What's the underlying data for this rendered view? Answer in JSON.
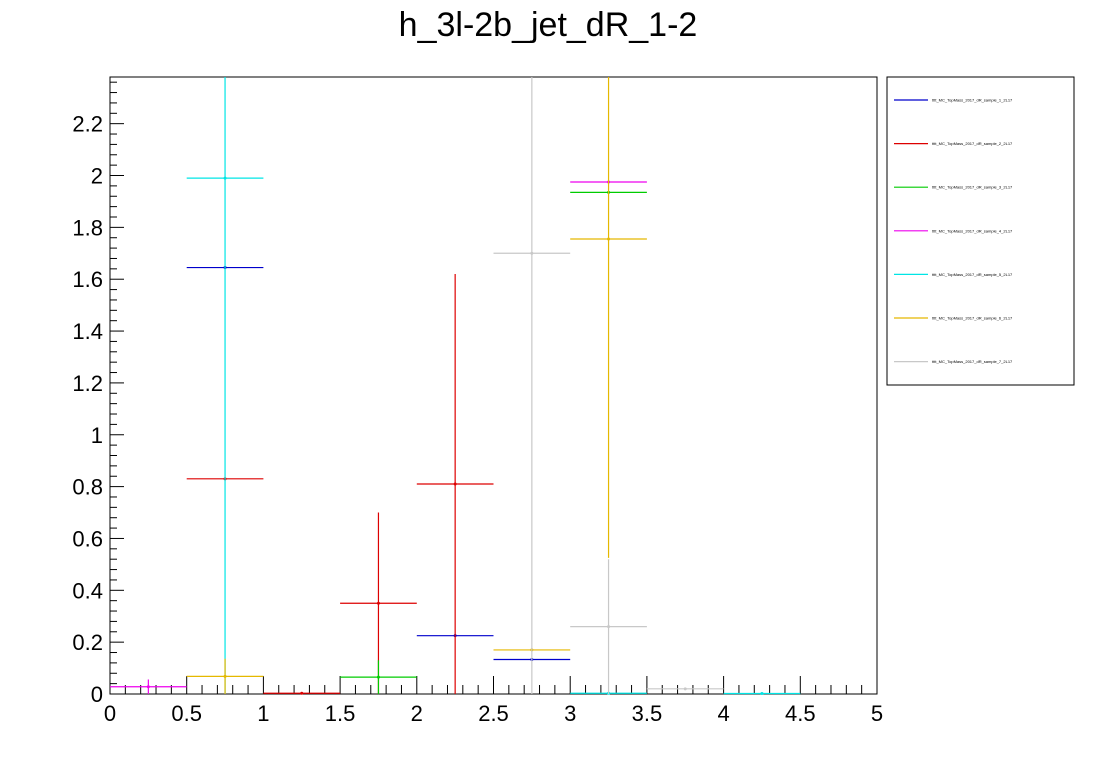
{
  "chart_data": {
    "type": "scatter",
    "title": "h_3l-2b_jet_dR_1-2",
    "xlabel": "",
    "ylabel": "",
    "xlim": [
      0,
      5
    ],
    "ylim": [
      0,
      2.38
    ],
    "x_ticks": [
      "0",
      "0.5",
      "1",
      "1.5",
      "2",
      "2.5",
      "3",
      "3.5",
      "4",
      "4.5",
      "5"
    ],
    "y_ticks": [
      "0",
      "0.2",
      "0.4",
      "0.6",
      "0.8",
      "1",
      "1.2",
      "1.4",
      "1.6",
      "1.8",
      "2",
      "2.2"
    ],
    "grid": false,
    "legend_position": "right",
    "bin_width": 0.5,
    "series": [
      {
        "name": "tttt_MC_TopMass_2017_dR_sample_1_2L17",
        "color": "#0000cc",
        "points": [
          {
            "x": 0.75,
            "y": 1.645,
            "err": 0
          },
          {
            "x": 2.25,
            "y": 0.225,
            "err": 0
          },
          {
            "x": 2.75,
            "y": 0.133,
            "err": 0
          }
        ]
      },
      {
        "name": "tttt_MC_TopMass_2017_dR_sample_2_2L17",
        "color": "#dd0000",
        "points": [
          {
            "x": 0.75,
            "y": 0.83,
            "err": 0
          },
          {
            "x": 1.25,
            "y": 0.003,
            "err": 0
          },
          {
            "x": 1.75,
            "y": 0.35,
            "err": 0.35
          },
          {
            "x": 2.25,
            "y": 0.81,
            "err": 0.81
          }
        ]
      },
      {
        "name": "tttt_MC_TopMass_2017_dR_sample_3_2L17",
        "color": "#00cc00",
        "points": [
          {
            "x": 1.75,
            "y": 0.065,
            "err": 0.065
          },
          {
            "x": 3.25,
            "y": 1.935,
            "err": 0
          }
        ]
      },
      {
        "name": "tttt_MC_TopMass_2017_dR_sample_4_2L17",
        "color": "#ee00ee",
        "points": [
          {
            "x": 0.25,
            "y": 0.028,
            "err": 0.028
          },
          {
            "x": 3.25,
            "y": 1.975,
            "err": 0
          }
        ]
      },
      {
        "name": "tttt_MC_TopMass_2017_dR_sample_5_2L17",
        "color": "#00e5e5",
        "points": [
          {
            "x": 0.75,
            "y": 1.99,
            "err": 2.0
          },
          {
            "x": 3.25,
            "y": 0.003,
            "err": 0
          },
          {
            "x": 4.25,
            "y": 0.002,
            "err": 0
          }
        ]
      },
      {
        "name": "tttt_MC_TopMass_2017_dR_sample_6_2L17",
        "color": "#e5b800",
        "points": [
          {
            "x": 0.75,
            "y": 0.068,
            "err": 0.068
          },
          {
            "x": 2.75,
            "y": 0.17,
            "err": 0
          },
          {
            "x": 3.25,
            "y": 1.755,
            "err": 1.23
          }
        ]
      },
      {
        "name": "tttt_MC_TopMass_2017_dR_sample_7_2L17",
        "color": "#c8c8c8",
        "points": [
          {
            "x": 2.75,
            "y": 1.7,
            "err": 1.7
          },
          {
            "x": 3.25,
            "y": 0.26,
            "err": 0.26
          },
          {
            "x": 3.75,
            "y": 0.02,
            "err": 0
          }
        ]
      }
    ]
  }
}
